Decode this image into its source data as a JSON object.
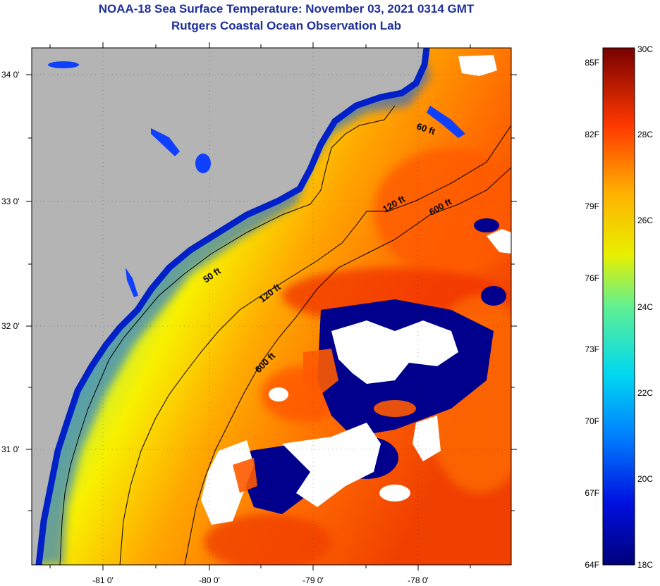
{
  "title": {
    "line1": "NOAA-18 Sea Surface Temperature:  November 03, 2021 0314 GMT",
    "line2": "Rutgers Coastal Ocean Observation Lab"
  },
  "map": {
    "latitude_labels": [
      "34 0'",
      "33 0'",
      "32 0'",
      "31 0'"
    ],
    "longitude_labels": [
      "-81 0'",
      "-80 0'",
      "-79 0'",
      "-78 0'"
    ],
    "contour_labels": [
      "60 ft",
      "120 ft",
      "600 ft",
      "50 ft",
      "120 ft",
      "600 ft"
    ],
    "colors": {
      "land": "#b4b4b4",
      "cloud": "#ffffff",
      "cold": "#00008c",
      "warm": "#e03000"
    }
  },
  "colorbar": {
    "fahrenheit_labels": [
      "85F",
      "82F",
      "79F",
      "76F",
      "73F",
      "70F",
      "67F",
      "64F"
    ],
    "celsius_labels": [
      "30C",
      "28C",
      "26C",
      "24C",
      "22C",
      "20C",
      "18C"
    ],
    "range_celsius": [
      18,
      30
    ],
    "range_fahrenheit": [
      64,
      85
    ]
  }
}
